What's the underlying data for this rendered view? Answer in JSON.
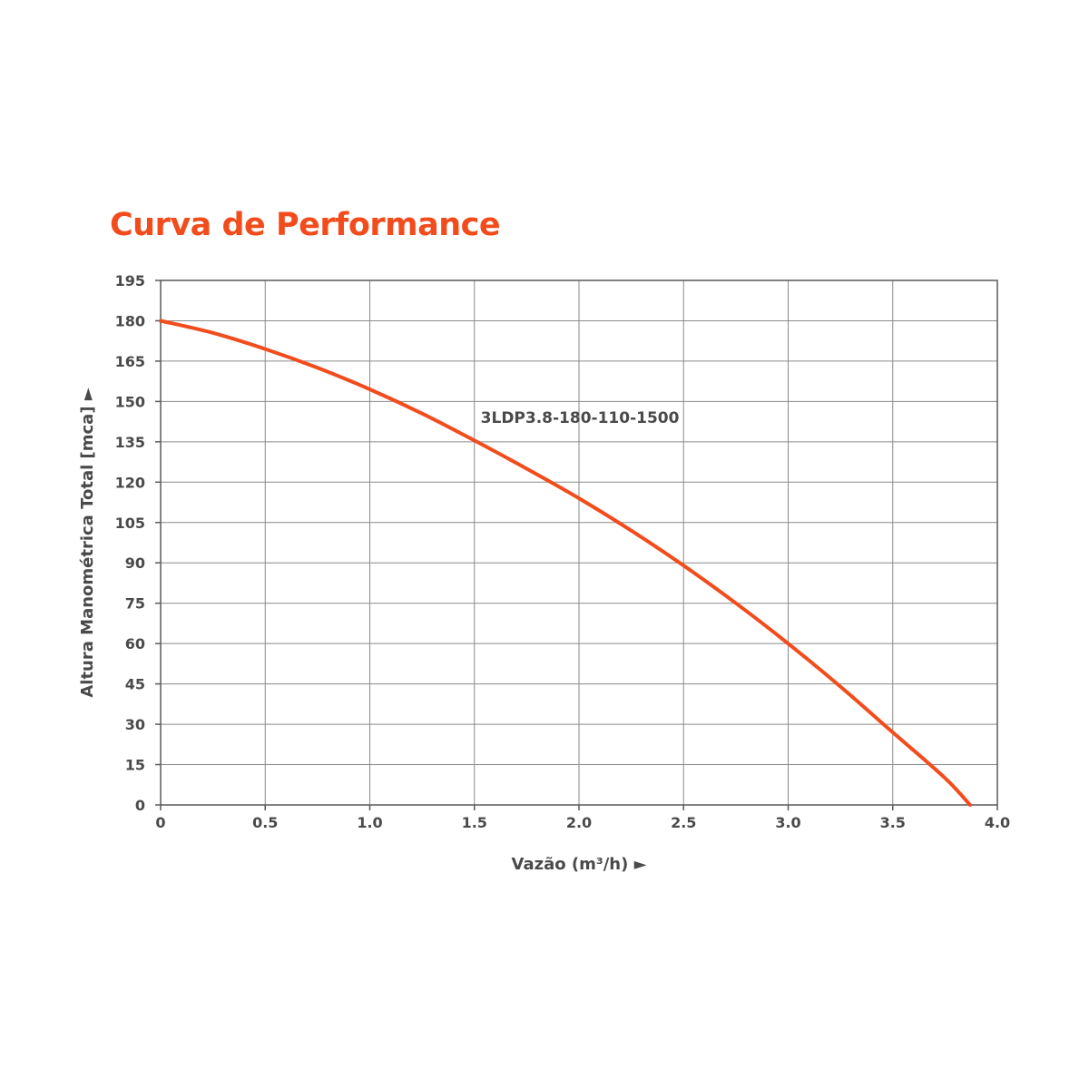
{
  "chart_data": {
    "type": "line",
    "title": "Curva de Performance",
    "xlabel": "Vazão (m³/h) ►",
    "ylabel": "Altura Manométrica Total [mca] ►",
    "xlim": [
      0,
      4.0
    ],
    "ylim": [
      0,
      195
    ],
    "x_ticks": [
      {
        "value": 0,
        "label": "0"
      },
      {
        "value": 0.5,
        "label": "0.5"
      },
      {
        "value": 1.0,
        "label": "1.0"
      },
      {
        "value": 1.5,
        "label": "1.5"
      },
      {
        "value": 2.0,
        "label": "2.0"
      },
      {
        "value": 2.5,
        "label": "2.5"
      },
      {
        "value": 3.0,
        "label": "3.0"
      },
      {
        "value": 3.5,
        "label": "3.5"
      },
      {
        "value": 4.0,
        "label": "4.0"
      }
    ],
    "y_ticks": [
      {
        "value": 0,
        "label": "0"
      },
      {
        "value": 15,
        "label": "15"
      },
      {
        "value": 30,
        "label": "30"
      },
      {
        "value": 45,
        "label": "45"
      },
      {
        "value": 60,
        "label": "60"
      },
      {
        "value": 75,
        "label": "75"
      },
      {
        "value": 90,
        "label": "90"
      },
      {
        "value": 105,
        "label": "105"
      },
      {
        "value": 120,
        "label": "120"
      },
      {
        "value": 135,
        "label": "135"
      },
      {
        "value": 150,
        "label": "150"
      },
      {
        "value": 165,
        "label": "165"
      },
      {
        "value": 180,
        "label": "180"
      },
      {
        "value": 195,
        "label": "195"
      }
    ],
    "grid": true,
    "series": [
      {
        "name": "3LDP3.8-180-110-1500",
        "color": "#f24c1d",
        "x": [
          0,
          0.25,
          0.5,
          0.75,
          1.0,
          1.25,
          1.5,
          1.75,
          2.0,
          2.25,
          2.5,
          2.75,
          3.0,
          3.25,
          3.5,
          3.75,
          3.87
        ],
        "y": [
          180,
          175.5,
          169.5,
          162.5,
          154.5,
          145.5,
          135.5,
          125,
          114,
          102,
          89,
          75,
          60,
          44,
          27,
          10,
          0
        ]
      }
    ],
    "annotations": [
      {
        "text": "3LDP3.8-180-110-1500",
        "x": 1.53,
        "y": 142
      }
    ],
    "colors": {
      "title": "#f24c1d",
      "text": "#4a4a4a",
      "grid": "#8a8a8a",
      "line": "#f24c1d"
    }
  }
}
